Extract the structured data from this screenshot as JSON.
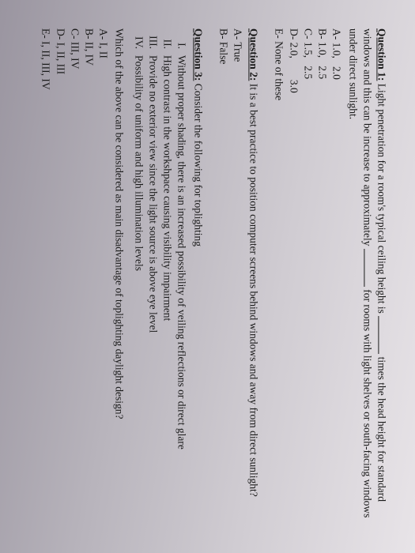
{
  "q1": {
    "title": "Question 1:",
    "line1a": "Light penetration for a room's typical ceiling height is ",
    "line1b": " times the head height for",
    "line2a": "standard windows and this can be increase to approximately ",
    "line2b": " for rooms with light",
    "line3": "shelves or south-facing windows under direct sunlight.",
    "opts": {
      "a": "A- 1.0,   2.0",
      "b": "B- 1.0,   2.5",
      "c": "C- 1.5,   2.5",
      "d": "D- 2.0,        3.0",
      "e": "E- None of these"
    }
  },
  "q2": {
    "title": "Question 2:",
    "text": "It is a best practice to position computer screens behind windows and away from direct sunlight?",
    "opts": {
      "a": "A- True",
      "b": "B- False"
    }
  },
  "q3": {
    "title": "Question 3:",
    "lead": "Consider the following for toplighting",
    "items": {
      "i": {
        "n": "I.",
        "t": "Without proper shading, there is an increased possibility of veiling reflections or direct glare"
      },
      "ii": {
        "n": "II.",
        "t": "High contrast in the workshpace causing visibility impairment"
      },
      "iii": {
        "n": "III.",
        "t": "Provide no exterior view since the light source is above eye level"
      },
      "iv": {
        "n": "IV.",
        "t": "Possibility of uniform and high illumination levels"
      }
    },
    "sub": "Which of the above can be considered as main disadvantage of toplighting daylight design?",
    "ans": {
      "a": "A- I, II",
      "b": "B- II, IV",
      "c": "C- III, IV",
      "d": "D- I, II, III",
      "e": "E- I, II, III, IV"
    }
  }
}
